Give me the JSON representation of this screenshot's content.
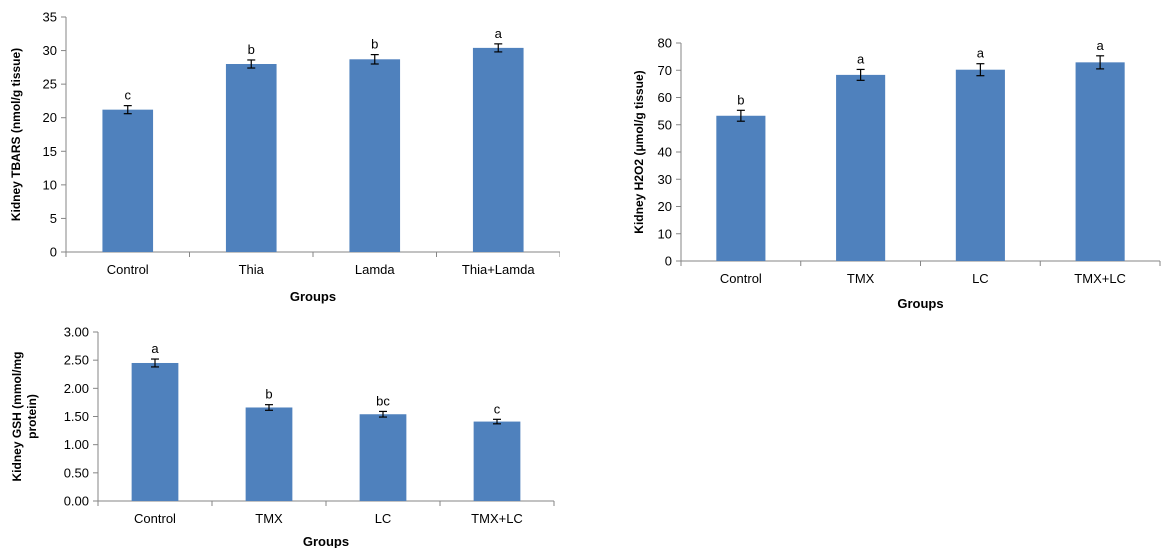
{
  "colors": {
    "bar": "#4f81bd",
    "axis": "#868686",
    "text": "#000000"
  },
  "chart_data": [
    {
      "type": "bar",
      "title": "",
      "xlabel": "Groups",
      "ylabel": "Kidney TBARS (nmol/g tissue)",
      "ylim": [
        0,
        35
      ],
      "yticks": [
        "0",
        "5",
        "10",
        "15",
        "20",
        "25",
        "30",
        "35"
      ],
      "categories": [
        "Control",
        "Thia",
        "Lamda",
        "Thia+Lamda"
      ],
      "values": [
        21.2,
        28.0,
        28.7,
        30.4
      ],
      "errors": [
        0.6,
        0.6,
        0.7,
        0.6
      ],
      "letters": [
        "c",
        "b",
        "b",
        "a"
      ],
      "grid": false
    },
    {
      "type": "bar",
      "title": "",
      "xlabel": "Groups",
      "ylabel": "Kidney H2O2 (μmol/g tissue)",
      "ylim": [
        0,
        80
      ],
      "yticks": [
        "0",
        "10",
        "20",
        "30",
        "40",
        "50",
        "60",
        "70",
        "80"
      ],
      "categories": [
        "Control",
        "TMX",
        "LC",
        "TMX+LC"
      ],
      "values": [
        53.3,
        68.3,
        70.2,
        72.9
      ],
      "errors": [
        2.0,
        2.0,
        2.2,
        2.4
      ],
      "letters": [
        "b",
        "a",
        "a",
        "a"
      ],
      "grid": false
    },
    {
      "type": "bar",
      "title": "",
      "xlabel": "Groups",
      "ylabel": "Kidney GSH (mmol/mg protein)",
      "ylim": [
        0,
        3.0
      ],
      "yticks": [
        "0.00",
        "0.50",
        "1.00",
        "1.50",
        "2.00",
        "2.50",
        "3.00"
      ],
      "categories": [
        "Control",
        "TMX",
        "LC",
        "TMX+LC"
      ],
      "values": [
        2.45,
        1.66,
        1.54,
        1.41
      ],
      "errors": [
        0.07,
        0.05,
        0.05,
        0.04
      ],
      "letters": [
        "a",
        "b",
        "bc",
        "c"
      ],
      "grid": false
    }
  ]
}
